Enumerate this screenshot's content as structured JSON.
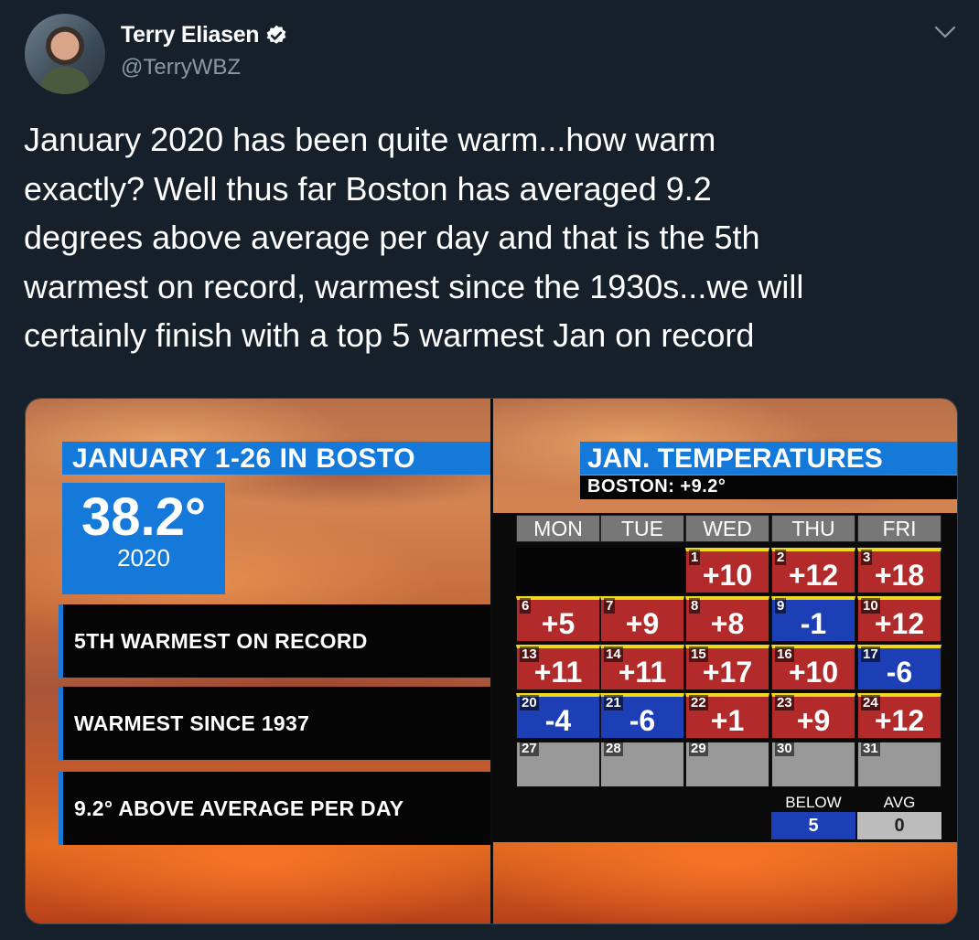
{
  "author": {
    "name": "Terry Eliasen",
    "handle": "@TerryWBZ"
  },
  "icons": {
    "verified": "verified-badge-icon",
    "more": "chevron-down-icon"
  },
  "tweet": {
    "lines": [
      "January 2020 has been quite warm...how warm",
      "exactly?  Well thus far Boston has averaged 9.2",
      "degrees above average per day and that is the 5th",
      "warmest on record, warmest since the 1930s...we will",
      "certainly finish with a top 5 warmest Jan on record"
    ]
  },
  "left_panel": {
    "title": "JANUARY 1-26 IN BOSTO",
    "value": "38.2°",
    "year": "2020",
    "facts": [
      "5TH WARMEST ON RECORD",
      "WARMEST SINCE 1937",
      "9.2° ABOVE AVERAGE PER DAY"
    ]
  },
  "right_panel": {
    "title": "JAN. TEMPERATURES",
    "subtitle": "BOSTON: +9.2°",
    "days": [
      "MON",
      "TUE",
      "WED",
      "THU",
      "FRI"
    ],
    "weeks": [
      [
        {
          "day": "",
          "value": "",
          "kind": "blank"
        },
        {
          "day": "",
          "value": "",
          "kind": "blank"
        },
        {
          "day": "1",
          "value": "+10",
          "kind": "warm"
        },
        {
          "day": "2",
          "value": "+12",
          "kind": "warm"
        },
        {
          "day": "3",
          "value": "+18",
          "kind": "warm"
        }
      ],
      [
        {
          "day": "6",
          "value": "+5",
          "kind": "warm"
        },
        {
          "day": "7",
          "value": "+9",
          "kind": "warm"
        },
        {
          "day": "8",
          "value": "+8",
          "kind": "warm"
        },
        {
          "day": "9",
          "value": "-1",
          "kind": "cold"
        },
        {
          "day": "10",
          "value": "+12",
          "kind": "warm"
        }
      ],
      [
        {
          "day": "13",
          "value": "+11",
          "kind": "warm"
        },
        {
          "day": "14",
          "value": "+11",
          "kind": "warm"
        },
        {
          "day": "15",
          "value": "+17",
          "kind": "warm"
        },
        {
          "day": "16",
          "value": "+10",
          "kind": "warm"
        },
        {
          "day": "17",
          "value": "-6",
          "kind": "cold"
        }
      ],
      [
        {
          "day": "20",
          "value": "-4",
          "kind": "cold"
        },
        {
          "day": "21",
          "value": "-6",
          "kind": "cold"
        },
        {
          "day": "22",
          "value": "+1",
          "kind": "warm"
        },
        {
          "day": "23",
          "value": "+9",
          "kind": "warm"
        },
        {
          "day": "24",
          "value": "+12",
          "kind": "warm"
        }
      ],
      [
        {
          "day": "27",
          "value": "",
          "kind": "empty"
        },
        {
          "day": "28",
          "value": "",
          "kind": "empty"
        },
        {
          "day": "29",
          "value": "",
          "kind": "empty"
        },
        {
          "day": "30",
          "value": "",
          "kind": "empty"
        },
        {
          "day": "31",
          "value": "",
          "kind": "empty"
        }
      ]
    ],
    "legend": [
      {
        "label": "BELOW",
        "count": "5",
        "color": "#1d3fb5"
      },
      {
        "label": "AVG",
        "count": "0",
        "color": "#bcbcbc"
      }
    ]
  },
  "colors": {
    "background": "#15202b",
    "accent_blue": "#1479d9",
    "warm": "#b22a2a",
    "cold": "#1d3fb5"
  }
}
